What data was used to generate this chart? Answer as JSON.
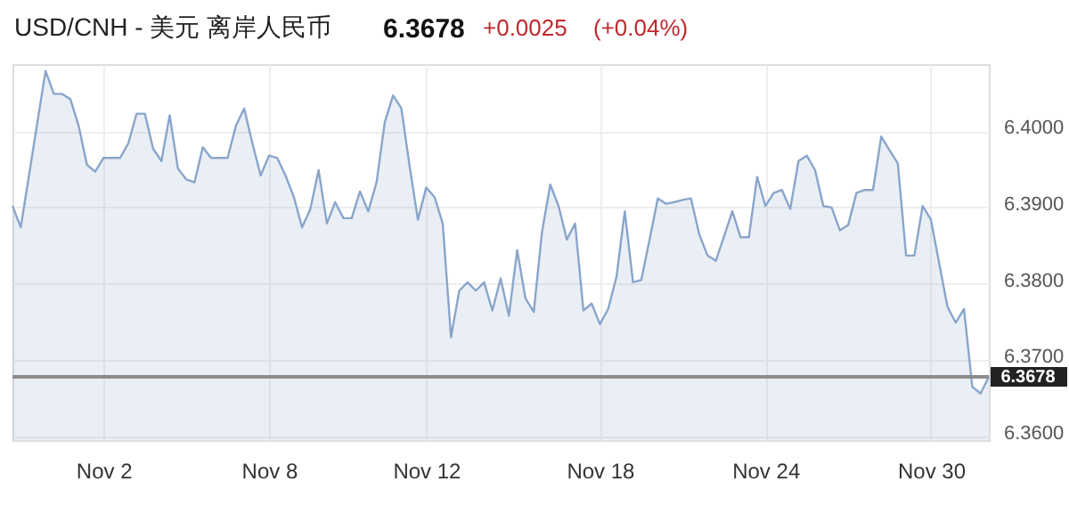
{
  "chart_data": {
    "type": "area",
    "title": "USD/CNH - 美元 离岸人民币",
    "annotations": [
      "6.3678",
      "+0.0025",
      "(+0.04%)"
    ],
    "categories": [
      null,
      null,
      null,
      null,
      null,
      null,
      null,
      null,
      null,
      null,
      null,
      "Nov 2",
      null,
      null,
      null,
      null,
      null,
      null,
      null,
      null,
      null,
      null,
      null,
      null,
      null,
      null,
      null,
      null,
      null,
      null,
      null,
      "Nov 8",
      null,
      null,
      null,
      null,
      null,
      null,
      null,
      null,
      null,
      null,
      null,
      null,
      null,
      null,
      null,
      null,
      null,
      null,
      "Nov 12",
      null,
      null,
      null,
      null,
      null,
      null,
      null,
      null,
      null,
      null,
      null,
      null,
      null,
      null,
      null,
      null,
      null,
      null,
      null,
      null,
      "Nov 18",
      null,
      null,
      null,
      null,
      null,
      null,
      null,
      null,
      null,
      null,
      null,
      null,
      null,
      null,
      null,
      null,
      null,
      null,
      null,
      "Nov 24",
      null,
      null,
      null,
      null,
      null,
      null,
      null,
      null,
      null,
      null,
      null,
      null,
      null,
      null,
      null,
      null,
      null,
      null,
      null,
      "Nov 30",
      null,
      null,
      null,
      null,
      null,
      null,
      null
    ],
    "series": [
      {
        "color": "#8aa5cb",
        "values": [
          6.3902,
          6.3874,
          6.3942,
          6.4011,
          6.4079,
          6.4049,
          6.4049,
          6.4042,
          6.4007,
          6.3956,
          6.3947,
          6.3965,
          6.3965,
          6.3965,
          6.3984,
          6.4023,
          6.4023,
          6.3977,
          6.3961,
          6.4021,
          6.3951,
          6.3937,
          6.3933,
          6.3979,
          6.3965,
          6.3965,
          6.3965,
          6.4007,
          6.403,
          6.3984,
          6.3942,
          6.3968,
          6.3965,
          6.3942,
          6.3914,
          6.3874,
          6.3898,
          6.3949,
          6.3879,
          6.3907,
          6.3886,
          6.3886,
          6.3921,
          6.3895,
          6.3933,
          6.4012,
          6.4047,
          6.403,
          6.3954,
          6.3884,
          6.3926,
          6.3914,
          6.3879,
          6.373,
          6.3791,
          6.3802,
          6.3791,
          6.3802,
          6.3765,
          6.3807,
          6.3758,
          6.3844,
          6.3781,
          6.3763,
          6.3868,
          6.393,
          6.3902,
          6.3858,
          6.3879,
          6.3765,
          6.3774,
          6.3747,
          6.3767,
          6.3809,
          6.3895,
          6.3802,
          6.3805,
          6.3858,
          6.3912,
          6.3905,
          6.3907,
          6.391,
          6.3912,
          6.3865,
          6.3837,
          6.383,
          6.3862,
          6.3895,
          6.3861,
          6.3861,
          6.394,
          6.3902,
          6.3919,
          6.3923,
          6.3898,
          6.3961,
          6.3968,
          6.3949,
          6.3902,
          6.39,
          6.387,
          6.3877,
          6.3919,
          6.3923,
          6.3923,
          6.3993,
          6.3975,
          6.3958,
          6.3837,
          6.3837,
          6.3902,
          6.3884,
          6.3827,
          6.377,
          6.3749,
          6.3767,
          6.3665,
          6.3656,
          6.3678
        ]
      }
    ],
    "ylim": [
      6.3595,
      6.4088
    ],
    "yticks": [
      {
        "value": 6.36,
        "label": "6.3600"
      },
      {
        "value": 6.37,
        "label": "6.3700"
      },
      {
        "value": 6.38,
        "label": "6.3800"
      },
      {
        "value": 6.39,
        "label": "6.3900"
      },
      {
        "value": 6.4,
        "label": "6.4000"
      }
    ],
    "grid": true,
    "ref_lines": [
      {
        "axis": "y",
        "value": 6.3678,
        "label": "6.3678",
        "color": "#8c8c8c"
      }
    ]
  }
}
